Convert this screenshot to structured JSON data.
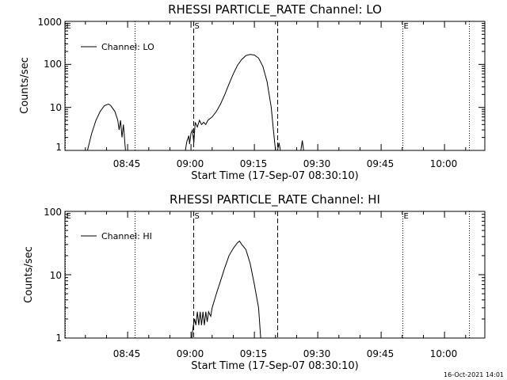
{
  "footer": {
    "timestamp": "16-Oct-2021 14:01"
  },
  "colors": {
    "background": "#ffffff",
    "foreground": "#000000"
  },
  "chart_data": [
    {
      "type": "line",
      "title": "RHESSI PARTICLE_RATE Channel: LO",
      "xlabel": "Start Time (17-Sep-07 08:30:10)",
      "ylabel": "Counts/sec",
      "y_scale": "log",
      "xlim": [
        "08:30:10",
        "10:08:00"
      ],
      "ylim": [
        1,
        1000
      ],
      "x_ticks": [
        "08:45",
        "09:00",
        "09:15",
        "09:30",
        "09:45",
        "10:00"
      ],
      "y_ticks": [
        "1",
        "10",
        "100",
        "1000"
      ],
      "legend": {
        "position": "top-left",
        "entries": [
          "Channel: LO"
        ]
      },
      "markers": [
        {
          "time": "08:30:10",
          "style": "dotted",
          "label": "E"
        },
        {
          "time": "08:46:45",
          "style": "dotted",
          "label": ""
        },
        {
          "time": "09:00:30",
          "style": "dashed",
          "label": "S"
        },
        {
          "time": "09:20:30",
          "style": "dashed",
          "label": ""
        },
        {
          "time": "09:50:00",
          "style": "dotted",
          "label": "E"
        },
        {
          "time": "10:05:50",
          "style": "dotted",
          "label": ""
        }
      ],
      "series": [
        {
          "name": "Channel: LO",
          "segments": [
            [
              [
                "08:35:30",
                1
              ],
              [
                "08:36:30",
                2.5
              ],
              [
                "08:37:30",
                5
              ],
              [
                "08:38:30",
                8
              ],
              [
                "08:39:30",
                11
              ],
              [
                "08:40:30",
                12
              ],
              [
                "08:41:00",
                11
              ],
              [
                "08:42:00",
                8
              ],
              [
                "08:42:40",
                5
              ],
              [
                "08:43:00",
                3
              ],
              [
                "08:43:20",
                5
              ],
              [
                "08:43:40",
                2
              ],
              [
                "08:44:00",
                4
              ],
              [
                "08:44:30",
                1
              ]
            ],
            [
              [
                "08:58:40",
                1
              ],
              [
                "08:59:00",
                1.6
              ],
              [
                "08:59:30",
                2.2
              ],
              [
                "08:59:40",
                1.4
              ],
              [
                "09:00:00",
                2.5
              ],
              [
                "09:00:20",
                3
              ],
              [
                "09:00:40",
                1.5
              ],
              [
                "09:01:00",
                4.5
              ],
              [
                "09:01:30",
                3.5
              ],
              [
                "09:02:00",
                5
              ],
              [
                "09:02:30",
                4
              ],
              [
                "09:03:00",
                4.5
              ],
              [
                "09:03:30",
                4
              ],
              [
                "09:04:00",
                5
              ],
              [
                "09:05:00",
                6
              ],
              [
                "09:06:00",
                8
              ],
              [
                "09:07:00",
                12
              ],
              [
                "09:08:00",
                20
              ],
              [
                "09:09:00",
                35
              ],
              [
                "09:10:00",
                60
              ],
              [
                "09:11:00",
                95
              ],
              [
                "09:12:00",
                130
              ],
              [
                "09:13:00",
                160
              ],
              [
                "09:14:00",
                170
              ],
              [
                "09:15:00",
                165
              ],
              [
                "09:16:00",
                140
              ],
              [
                "09:17:00",
                90
              ],
              [
                "09:18:00",
                40
              ],
              [
                "09:19:00",
                10
              ],
              [
                "09:19:30",
                3
              ],
              [
                "09:20:00",
                1
              ]
            ],
            [
              [
                "09:20:30",
                1
              ],
              [
                "09:20:50",
                1.5
              ],
              [
                "09:21:10",
                1
              ]
            ],
            [
              [
                "09:26:00",
                1
              ],
              [
                "09:26:20",
                1.7
              ],
              [
                "09:26:40",
                1
              ]
            ]
          ]
        }
      ]
    },
    {
      "type": "line",
      "title": "RHESSI PARTICLE_RATE Channel: HI",
      "xlabel": "Start Time (17-Sep-07 08:30:10)",
      "ylabel": "Counts/sec",
      "y_scale": "log",
      "xlim": [
        "08:30:10",
        "10:08:00"
      ],
      "ylim": [
        1,
        100
      ],
      "x_ticks": [
        "08:45",
        "09:00",
        "09:15",
        "09:30",
        "09:45",
        "10:00"
      ],
      "y_ticks": [
        "1",
        "10",
        "100"
      ],
      "legend": {
        "position": "top-left",
        "entries": [
          "Channel: HI"
        ]
      },
      "markers": [
        {
          "time": "08:30:10",
          "style": "dotted",
          "label": "E"
        },
        {
          "time": "08:46:45",
          "style": "dotted",
          "label": ""
        },
        {
          "time": "09:00:30",
          "style": "dashed",
          "label": "S"
        },
        {
          "time": "09:20:30",
          "style": "dashed",
          "label": ""
        },
        {
          "time": "09:50:00",
          "style": "dotted",
          "label": "E"
        },
        {
          "time": "10:05:50",
          "style": "dotted",
          "label": ""
        }
      ],
      "series": [
        {
          "name": "Channel: HI",
          "segments": [
            [
              [
                "09:00:10",
                1
              ],
              [
                "09:00:30",
                1.5
              ],
              [
                "09:00:50",
                2.0
              ],
              [
                "09:01:10",
                1.6
              ],
              [
                "09:01:30",
                2.6
              ],
              [
                "09:01:50",
                1.6
              ],
              [
                "09:02:10",
                2.6
              ],
              [
                "09:02:30",
                1.6
              ],
              [
                "09:02:50",
                2.6
              ],
              [
                "09:03:10",
                1.6
              ],
              [
                "09:03:30",
                2.6
              ],
              [
                "09:03:50",
                1.8
              ],
              [
                "09:04:10",
                2.6
              ],
              [
                "09:04:40",
                2.2
              ],
              [
                "09:05:00",
                3
              ],
              [
                "09:06:00",
                5
              ],
              [
                "09:07:00",
                8
              ],
              [
                "09:08:00",
                13
              ],
              [
                "09:09:00",
                20
              ],
              [
                "09:10:00",
                26
              ],
              [
                "09:11:00",
                32
              ],
              [
                "09:11:30",
                34
              ],
              [
                "09:12:00",
                30
              ],
              [
                "09:13:00",
                25
              ],
              [
                "09:14:00",
                15
              ],
              [
                "09:15:00",
                7
              ],
              [
                "09:16:00",
                3
              ],
              [
                "09:16:30",
                1
              ]
            ]
          ]
        }
      ]
    }
  ]
}
